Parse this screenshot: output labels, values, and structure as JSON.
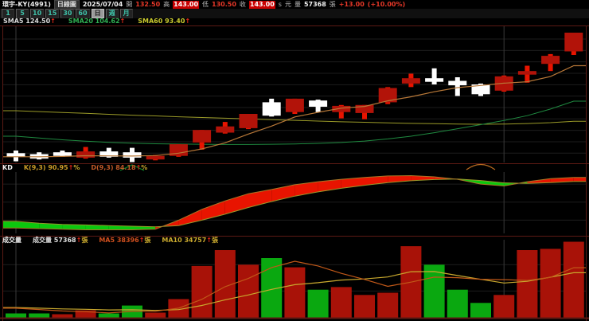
{
  "quote_bar": {
    "title": "環宇-KY(4991)",
    "period_label": "日線圖",
    "date": "2025/07/04",
    "fields": [
      {
        "label": "開",
        "value": "132.50",
        "style": "red-text"
      },
      {
        "label": "高",
        "value": "143.00",
        "style": "red-badge"
      },
      {
        "label": "低",
        "value": "130.50",
        "style": "red-text"
      },
      {
        "label": "收",
        "value": "143.00",
        "style": "red-badge"
      }
    ],
    "close_suffix": "s",
    "unit": "元",
    "volume_label": "量",
    "volume_value": "57368",
    "volume_unit": "張",
    "change": "+13.00",
    "change_pct": "(+10.00%)"
  },
  "toolbar": {
    "buttons": [
      "1",
      "5",
      "10",
      "15",
      "30",
      "60",
      "日",
      "週",
      "月"
    ],
    "active_index": 6
  },
  "sma_legend": {
    "items": [
      {
        "label": "SMA5",
        "value": "124.50",
        "arrow": "↑",
        "color": "#d8d8d8"
      },
      {
        "label": "SMA20",
        "value": "104.62",
        "arrow": "↑",
        "color": "#2fae52"
      },
      {
        "label": "SMA60",
        "value": "93.40",
        "arrow": "↑",
        "color": "#c9c92e"
      }
    ]
  },
  "kd_panel": {
    "title": "KD",
    "items": [
      {
        "label": "K(9,3)",
        "value": "90.95",
        "arrow": "↑",
        "suffix": "%",
        "color": "#c99b28"
      },
      {
        "label": "D(9,3)",
        "value": "84.18",
        "arrow": "↑",
        "suffix": "%",
        "color": "#c05a28"
      }
    ]
  },
  "volume_panel": {
    "title": "成交量",
    "items": [
      {
        "label": "成交量",
        "value": "57368",
        "arrow": "↑",
        "suffix": "張",
        "color": "#e0e0e0"
      },
      {
        "label": "MA5",
        "value": "38396",
        "arrow": "↑",
        "suffix": "張",
        "color": "#cf4f1e"
      },
      {
        "label": "MA10",
        "value": "34757",
        "arrow": "↑",
        "suffix": "張",
        "color": "#c9a92e"
      }
    ]
  },
  "chart_data": {
    "type": "candlestick",
    "title": "環宇-KY(4991) 日線圖 2025/07/04",
    "price_range": [
      70,
      147
    ],
    "prev_close": 74.5,
    "candles": [
      [
        75.5,
        77.0,
        71.0,
        73.5
      ],
      [
        75.0,
        76.0,
        72.0,
        72.5
      ],
      [
        76.0,
        77.0,
        73.5,
        74.0
      ],
      [
        73.0,
        79.0,
        72.5,
        76.5
      ],
      [
        76.5,
        78.5,
        73.0,
        73.5
      ],
      [
        76.0,
        78.5,
        70.5,
        73.0
      ],
      [
        72.0,
        74.5,
        71.5,
        74.0
      ],
      [
        74.0,
        80.5,
        73.5,
        80.5
      ],
      [
        81.5,
        88.5,
        77.5,
        88.5
      ],
      [
        87.0,
        93.0,
        86.5,
        90.5
      ],
      [
        89.5,
        97.5,
        89.0,
        97.5
      ],
      [
        104.0,
        106.0,
        96.0,
        96.5
      ],
      [
        98.5,
        106.0,
        97.5,
        106.0
      ],
      [
        105.0,
        105.5,
        98.5,
        101.5
      ],
      [
        98.5,
        102.5,
        95.0,
        102.0
      ],
      [
        98.0,
        102.5,
        94.5,
        102.5
      ],
      [
        104.0,
        112.5,
        103.0,
        112.0
      ],
      [
        114.5,
        120.0,
        112.5,
        117.5
      ],
      [
        117.5,
        123.0,
        114.0,
        115.5
      ],
      [
        116.0,
        118.0,
        107.5,
        113.5
      ],
      [
        114.0,
        114.5,
        107.5,
        108.5
      ],
      [
        110.5,
        119.0,
        110.0,
        118.5
      ],
      [
        119.5,
        124.5,
        115.0,
        121.5
      ],
      [
        125.5,
        131.0,
        121.5,
        130.0
      ],
      [
        132.5,
        143.0,
        130.5,
        143.0
      ]
    ],
    "sma5": [
      73.5,
      73.5,
      73.7,
      74.1,
      74.0,
      73.9,
      74.2,
      75.5,
      77.9,
      81.3,
      86.2,
      90.7,
      95.8,
      98.4,
      100.7,
      101.7,
      104.8,
      107.1,
      109.9,
      112.2,
      113.4,
      114.7,
      115.5,
      118.4,
      124.5
    ],
    "sma20": [
      85.0,
      84.0,
      83.0,
      82.2,
      81.6,
      81.1,
      80.8,
      80.6,
      80.5,
      80.4,
      80.4,
      80.5,
      80.7,
      81.0,
      81.5,
      82.3,
      83.5,
      85.0,
      87.0,
      89.2,
      91.5,
      93.8,
      96.5,
      100.2,
      104.62
    ],
    "sma60": [
      99.3,
      98.8,
      98.3,
      97.8,
      97.3,
      96.8,
      96.4,
      95.9,
      95.5,
      95.1,
      94.7,
      94.3,
      93.9,
      93.5,
      93.1,
      92.8,
      92.5,
      92.2,
      92.0,
      91.8,
      91.7,
      91.8,
      92.1,
      92.6,
      93.4
    ],
    "kd": {
      "range": [
        0,
        100
      ],
      "k": [
        7,
        6,
        5,
        4,
        4,
        4,
        5,
        20,
        38,
        52,
        64,
        71,
        79,
        84,
        88,
        91,
        93.5,
        94,
        92,
        88,
        80,
        77,
        84,
        89,
        90.95
      ],
      "d": [
        18,
        15,
        13,
        12,
        11,
        10,
        9,
        11,
        20,
        30,
        41,
        51,
        60,
        67,
        73,
        78,
        82.5,
        85.5,
        87.5,
        88.5,
        86,
        82,
        81,
        82.5,
        84.18
      ]
    },
    "volume": [
      3000,
      3000,
      2400,
      5400,
      3000,
      9000,
      3600,
      13900,
      39000,
      51000,
      40000,
      45000,
      38000,
      21000,
      23000,
      17000,
      18700,
      54000,
      40000,
      21000,
      11000,
      17000,
      51000,
      52000,
      57368
    ],
    "volume_ma_periods": [
      5,
      10
    ],
    "month_gridline_indices": [
      0,
      21
    ],
    "markers": [
      {
        "shape": "caret",
        "index": 5,
        "color": "#0a8a2a"
      },
      {
        "shape": "arc",
        "index": 20,
        "color": "#b86a20"
      }
    ]
  },
  "colors": {
    "up_body": "#b21309",
    "up_wick": "#e81400",
    "down_body": "#ffffff",
    "vol_up": "#a81208",
    "vol_down": "#0aa810",
    "sma5": "#b87838",
    "sma20": "#1f8a40",
    "sma60": "#9a9a28",
    "k_line": "#a87828",
    "d_line": "#99992b",
    "kd_fill_up": "#e81400",
    "kd_fill_down": "#0bc80e",
    "vol_ma5": "#c05818",
    "vol_ma10": "#c9a92e",
    "grid": "#1d1d1d",
    "grid_month": "#3a3a3a",
    "panel_border": "#5c1a14",
    "arrow": "#e82818"
  }
}
